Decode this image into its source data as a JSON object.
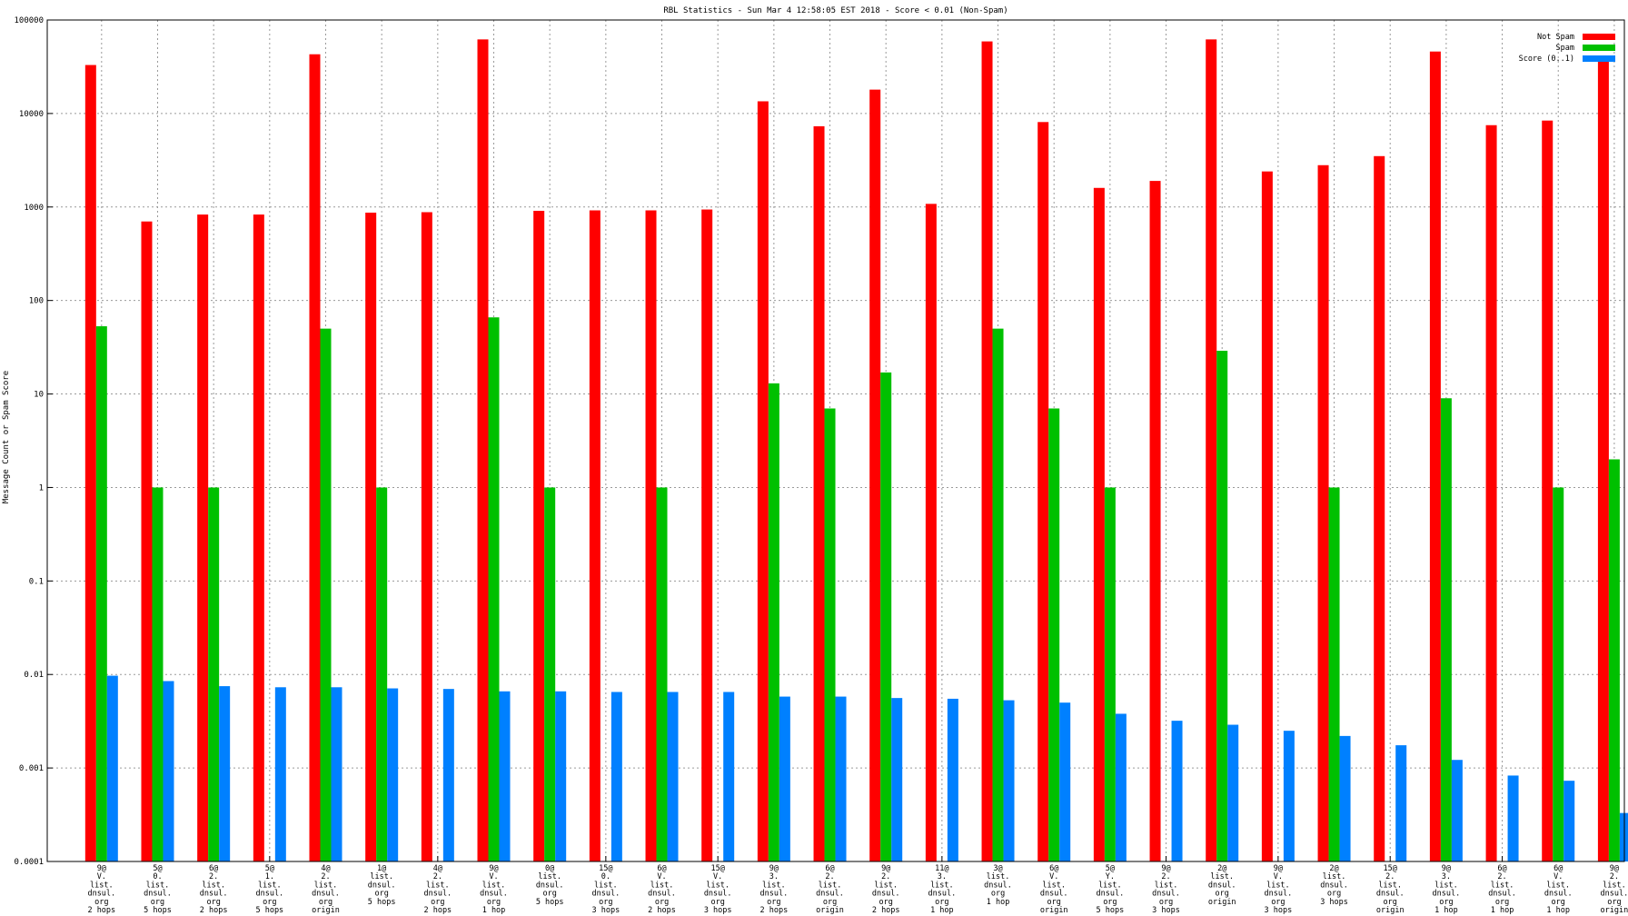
{
  "chart_data": {
    "type": "bar",
    "title": "RBL Statistics - Sun Mar  4 12:58:05 EST 2018 - Score < 0.01 (Non-Spam)",
    "xlabel": "",
    "ylabel": "Message Count or Spam Score",
    "yscale": "log",
    "ylim": [
      0.0001,
      100000
    ],
    "yticks": [
      "0.0001",
      "0.001",
      "0.01",
      "0.1",
      "1",
      "10",
      "100",
      "1000",
      "10000",
      "100000"
    ],
    "grid": true,
    "legend_position": "top-right",
    "categories": [
      [
        "9@",
        "V.",
        "list.",
        "dnsul.",
        "org",
        "2 hops"
      ],
      [
        "5@",
        "0.",
        "list.",
        "dnsul.",
        "org",
        "5 hops"
      ],
      [
        "6@",
        "2.",
        "list.",
        "dnsul.",
        "org",
        "2 hops"
      ],
      [
        "5@",
        "1.",
        "list.",
        "dnsul.",
        "org",
        "5 hops"
      ],
      [
        "4@",
        "2.",
        "list.",
        "dnsul.",
        "org",
        "origin"
      ],
      [
        "1@",
        "list.",
        "dnsul.",
        "org",
        "5 hops"
      ],
      [
        "4@",
        "2.",
        "list.",
        "dnsul.",
        "org",
        "2 hops"
      ],
      [
        "9@",
        "V.",
        "list.",
        "dnsul.",
        "org",
        "1 hop"
      ],
      [
        "0@",
        "list.",
        "dnsul.",
        "org",
        "5 hops"
      ],
      [
        "15@",
        "0.",
        "list.",
        "dnsul.",
        "org",
        "3 hops"
      ],
      [
        "6@",
        "V.",
        "list.",
        "dnsul.",
        "org",
        "2 hops"
      ],
      [
        "15@",
        "V.",
        "list.",
        "dnsul.",
        "org",
        "3 hops"
      ],
      [
        "9@",
        "3.",
        "list.",
        "dnsul.",
        "org",
        "2 hops"
      ],
      [
        "6@",
        "2.",
        "list.",
        "dnsul.",
        "org",
        "origin"
      ],
      [
        "9@",
        "2.",
        "list.",
        "dnsul.",
        "org",
        "2 hops"
      ],
      [
        "11@",
        "3.",
        "list.",
        "dnsul.",
        "org",
        "1 hop"
      ],
      [
        "3@",
        "list.",
        "dnsul.",
        "org",
        "1 hop"
      ],
      [
        "6@",
        "V.",
        "list.",
        "dnsul.",
        "org",
        "origin"
      ],
      [
        "5@",
        "Y.",
        "list.",
        "dnsul.",
        "org",
        "5 hops"
      ],
      [
        "9@",
        "2.",
        "list.",
        "dnsul.",
        "org",
        "3 hops"
      ],
      [
        "2@",
        "list.",
        "dnsul.",
        "org",
        "origin"
      ],
      [
        "9@",
        "V.",
        "list.",
        "dnsul.",
        "org",
        "3 hops"
      ],
      [
        "2@",
        "list.",
        "dnsul.",
        "org",
        "3 hops"
      ],
      [
        "15@",
        "2.",
        "list.",
        "dnsul.",
        "org",
        "origin"
      ],
      [
        "9@",
        "3.",
        "list.",
        "dnsul.",
        "org",
        "1 hop"
      ],
      [
        "6@",
        "2.",
        "list.",
        "dnsul.",
        "org",
        "1 hop"
      ],
      [
        "6@",
        "V.",
        "list.",
        "dnsul.",
        "org",
        "1 hop"
      ],
      [
        "9@",
        "2.",
        "list.",
        "dnsul.",
        "org",
        "origin"
      ]
    ],
    "series": [
      {
        "name": "Not Spam",
        "color": "#ff0000",
        "values": [
          33000,
          700,
          830,
          830,
          43000,
          870,
          880,
          62000,
          910,
          920,
          920,
          940,
          13500,
          7300,
          18000,
          1080,
          59000,
          8100,
          1600,
          1900,
          62000,
          2400,
          2800,
          3500,
          46000,
          7500,
          8400,
          37000
        ]
      },
      {
        "name": "Spam",
        "color": "#00c000",
        "values": [
          53,
          1,
          1,
          null,
          50,
          1,
          null,
          66,
          1,
          null,
          1,
          null,
          13,
          7,
          17,
          null,
          50,
          7,
          1,
          null,
          29,
          null,
          1,
          null,
          9,
          null,
          1,
          2
        ]
      },
      {
        "name": "Score (0..1)",
        "color": "#0080ff",
        "values": [
          0.0097,
          0.0085,
          0.0075,
          0.0073,
          0.0073,
          0.0071,
          0.007,
          0.0066,
          0.0066,
          0.0065,
          0.0065,
          0.0065,
          0.0058,
          0.0058,
          0.0056,
          0.0055,
          0.0053,
          0.005,
          0.0038,
          0.0032,
          0.0029,
          0.0025,
          0.0022,
          0.00175,
          0.00122,
          0.00083,
          0.00073,
          0.00033
        ]
      }
    ]
  }
}
